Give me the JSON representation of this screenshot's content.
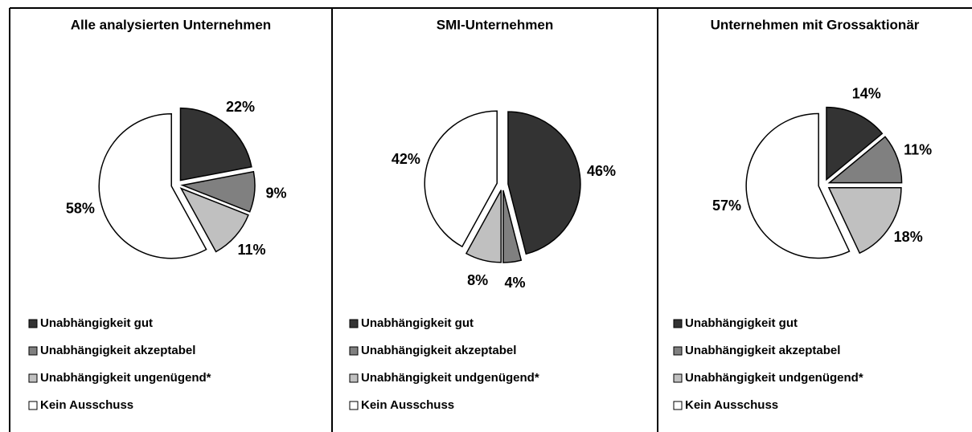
{
  "chart_data": [
    {
      "type": "pie",
      "title": "Alle analysierten Unternehmen",
      "categories": [
        "Unabhängigkeit gut",
        "Unabhängigkeit akzeptabel",
        "Unabhängigkeit ungenügend*",
        "Kein Ausschuss"
      ],
      "values": [
        22,
        9,
        11,
        58
      ],
      "value_labels": [
        "22%",
        "9%",
        "11%",
        "58%"
      ],
      "colors": [
        "#333333",
        "#808080",
        "#c0c0c0",
        "#ffffff"
      ]
    },
    {
      "type": "pie",
      "title": "SMI-Unternehmen",
      "categories": [
        "Unabhängigkeit gut",
        "Unabhängigkeit akzeptabel",
        "Unabhängigkeit undgenügend*",
        "Kein Ausschuss"
      ],
      "values": [
        46,
        4,
        8,
        42
      ],
      "value_labels": [
        "46%",
        "4%",
        "8%",
        "42%"
      ],
      "colors": [
        "#333333",
        "#808080",
        "#c0c0c0",
        "#ffffff"
      ]
    },
    {
      "type": "pie",
      "title": "Unternehmen mit Grossaktionär",
      "categories": [
        "Unabhängigkeit gut",
        "Unabhängigkeit akzeptabel",
        "Unabhängigkeit undgenügend*",
        "Kein Ausschuss"
      ],
      "values": [
        14,
        11,
        18,
        57
      ],
      "value_labels": [
        "14%",
        "11%",
        "18%",
        "57%"
      ],
      "colors": [
        "#333333",
        "#808080",
        "#c0c0c0",
        "#ffffff"
      ]
    }
  ]
}
